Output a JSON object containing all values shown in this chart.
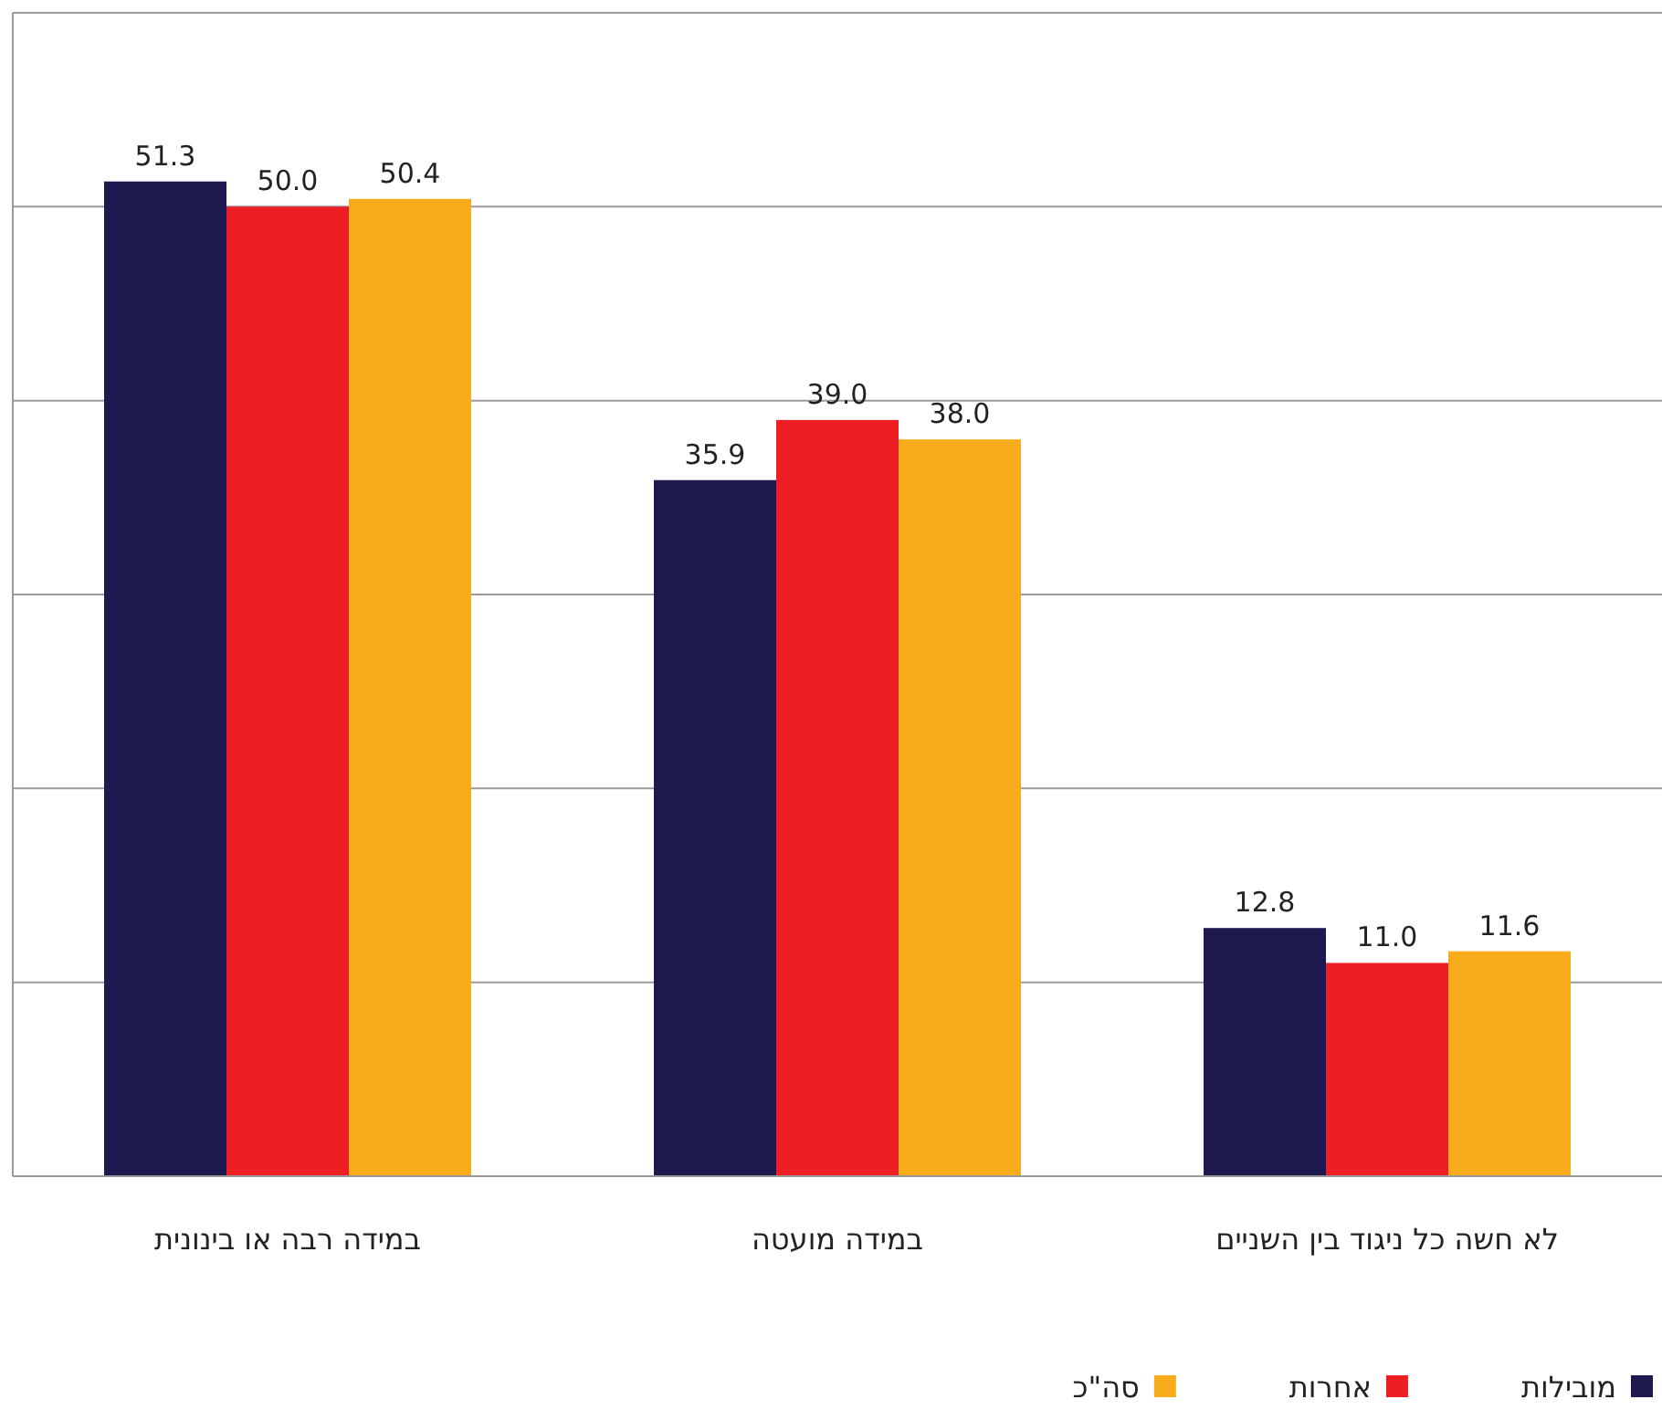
{
  "chart_data": {
    "type": "bar",
    "categories": [
      "במידה רבה או בינונית",
      "במידה מועטה",
      "לא חשה כל ניגוד בין השניים"
    ],
    "series": [
      {
        "name": "מובילות",
        "color": "#1e1a4f",
        "values": [
          51.3,
          35.9,
          12.8
        ],
        "value_labels": [
          "51.3",
          "35.9",
          "12.8"
        ]
      },
      {
        "name": "אחרות",
        "color": "#ee1e25",
        "values": [
          50.0,
          39.0,
          11.0
        ],
        "value_labels": [
          "50.0",
          "39.0",
          "11.0"
        ]
      },
      {
        "name": "סה\"כ",
        "color": "#f8ac1b",
        "values": [
          50.4,
          38.0,
          11.6
        ],
        "value_labels": [
          "50.4",
          "38.0",
          "11.6"
        ]
      }
    ],
    "ylim": [
      0,
      60
    ],
    "yticks": [
      {
        "value": 0,
        "label": null
      },
      {
        "value": 10,
        "label": null
      },
      {
        "value": 20,
        "label": null
      },
      {
        "value": 30,
        "label": null
      },
      {
        "value": 40,
        "label": null
      },
      {
        "value": 50,
        "label": null
      },
      {
        "value": 60,
        "label": null
      }
    ],
    "grid": "y",
    "legend": "bottom"
  }
}
